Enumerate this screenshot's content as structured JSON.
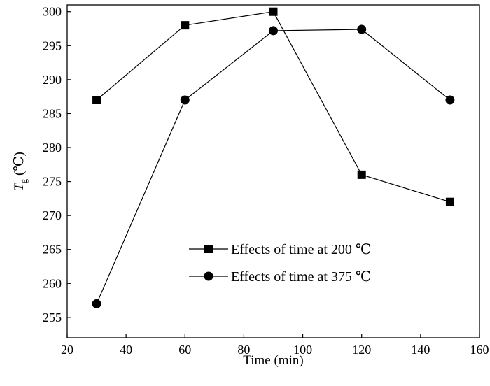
{
  "chart_data": {
    "type": "line",
    "x": [
      30,
      60,
      90,
      120,
      150
    ],
    "series": [
      {
        "name": "Effects of time at 200 ℃",
        "marker": "square",
        "values": [
          287,
          298,
          300,
          276,
          272
        ]
      },
      {
        "name": "Effects of time at 375 ℃",
        "marker": "circle",
        "values": [
          257,
          287,
          297.2,
          297.4,
          287
        ]
      }
    ],
    "title": "",
    "xlabel": "Time (min)",
    "ylabel": {
      "symbol": "T",
      "subscript": "g",
      "unit": " (℃)"
    },
    "xlim": [
      20,
      160
    ],
    "ylim": [
      252,
      301
    ],
    "xticks": [
      20,
      40,
      60,
      80,
      100,
      120,
      140,
      160
    ],
    "yticks": [
      255,
      260,
      265,
      270,
      275,
      280,
      285,
      290,
      295,
      300
    ],
    "grid": false,
    "legend_position": "lower-center"
  }
}
